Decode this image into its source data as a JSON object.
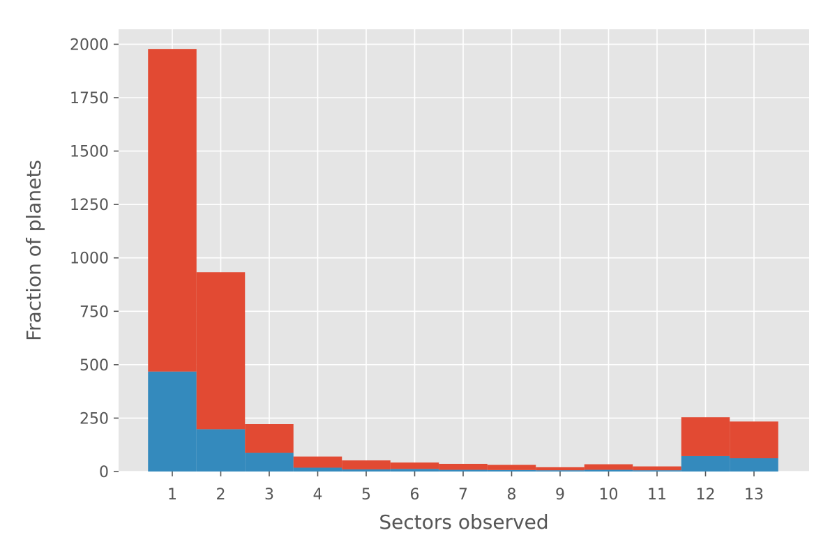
{
  "chart_data": {
    "type": "bar",
    "stacked": true,
    "categories": [
      "1",
      "2",
      "3",
      "4",
      "5",
      "6",
      "7",
      "8",
      "9",
      "10",
      "11",
      "12",
      "13"
    ],
    "series": [
      {
        "color": "#348ABD",
        "values": [
          468,
          198,
          88,
          18,
          10,
          12,
          8,
          7,
          6,
          8,
          6,
          72,
          62
        ]
      },
      {
        "color": "#E24A33",
        "values": [
          1510,
          735,
          134,
          52,
          42,
          30,
          28,
          24,
          14,
          26,
          18,
          182,
          172
        ]
      }
    ],
    "title": "",
    "xlabel": "Sectors observed",
    "ylabel": "Fraction of planets",
    "ylim": [
      0,
      2070
    ],
    "yticks": [
      0,
      250,
      500,
      750,
      1000,
      1250,
      1500,
      1750,
      2000
    ],
    "grid": true,
    "background": "#E5E5E5"
  }
}
